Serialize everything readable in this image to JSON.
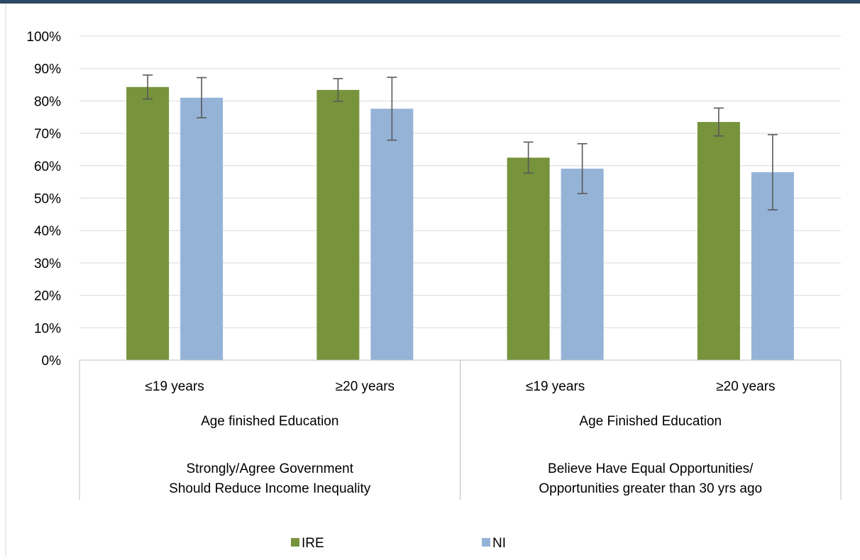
{
  "colors": {
    "top_bar": "#2c4a63",
    "grid": "#d9d9d9",
    "axis": "#bfbfbf",
    "error_bar": "#595959"
  },
  "chart_data": {
    "type": "bar",
    "title": "",
    "xlabel": "",
    "ylabel": "",
    "ylim": [
      0,
      100
    ],
    "y_ticks": [
      0,
      10,
      20,
      30,
      40,
      50,
      60,
      70,
      80,
      90,
      100
    ],
    "y_tick_format": "percent",
    "grid": true,
    "legend_position": "bottom",
    "categories": [
      "≤19 years",
      "≥20 years",
      "≤19 years",
      "≥20 years"
    ],
    "subgroups": [
      {
        "label": "Age finished Education",
        "span": [
          0,
          1
        ]
      },
      {
        "label": "Age Finished Education",
        "span": [
          2,
          3
        ]
      }
    ],
    "groups": [
      {
        "label_lines": [
          "Strongly/Agree Government",
          "Should Reduce Income Inequality"
        ],
        "span": [
          0,
          1
        ]
      },
      {
        "label_lines": [
          "Believe Have Equal Opportunities/",
          "Opportunities greater than 30 yrs ago"
        ],
        "span": [
          2,
          3
        ]
      }
    ],
    "series": [
      {
        "name": "IRE",
        "color": "#77933c",
        "values": [
          84.3,
          83.4,
          62.5,
          73.5
        ],
        "error_low": [
          80.6,
          79.9,
          57.7,
          69.2
        ],
        "error_high": [
          88.0,
          86.9,
          67.3,
          77.8
        ]
      },
      {
        "name": "NI",
        "color": "#95b3d7",
        "values": [
          81.0,
          77.6,
          59.1,
          58.0
        ],
        "error_low": [
          74.8,
          67.9,
          51.4,
          46.4
        ],
        "error_high": [
          87.2,
          87.3,
          66.8,
          69.6
        ]
      }
    ]
  }
}
